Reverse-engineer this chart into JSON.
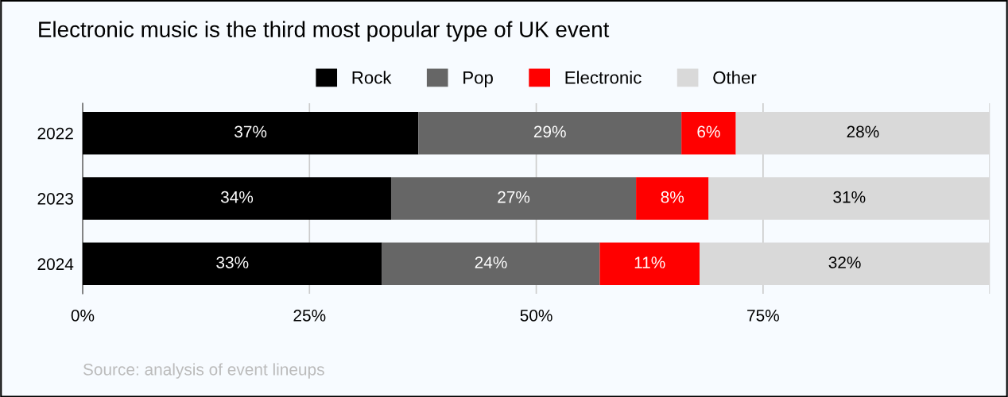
{
  "chart_data": {
    "type": "bar",
    "orientation": "horizontal",
    "stacked": true,
    "title": "Electronic music is the third most popular type of UK event",
    "categories": [
      "2022",
      "2023",
      "2024"
    ],
    "series": [
      {
        "name": "Rock",
        "color": "#000000",
        "values": [
          37,
          34,
          33
        ],
        "value_labels": [
          "37%",
          "34%",
          "33%"
        ]
      },
      {
        "name": "Pop",
        "color": "#666666",
        "values": [
          29,
          27,
          24
        ],
        "value_labels": [
          "29%",
          "27%",
          "24%"
        ]
      },
      {
        "name": "Electronic",
        "color": "#ff0000",
        "values": [
          6,
          8,
          11
        ],
        "value_labels": [
          "6%",
          "8%",
          "11%"
        ]
      },
      {
        "name": "Other",
        "color": "#d9d9d9",
        "values": [
          28,
          31,
          32
        ],
        "value_labels": [
          "28%",
          "31%",
          "32%"
        ]
      }
    ],
    "xlim": [
      0,
      100
    ],
    "xticks": [
      {
        "value": 0,
        "label": "0%"
      },
      {
        "value": 25,
        "label": "25%"
      },
      {
        "value": 50,
        "label": "50%"
      },
      {
        "value": 75,
        "label": "75%"
      },
      {
        "value": 100,
        "label": null
      }
    ],
    "grid": "x",
    "legend": "top",
    "annotations": [
      "Source: analysis of event lineups"
    ]
  }
}
